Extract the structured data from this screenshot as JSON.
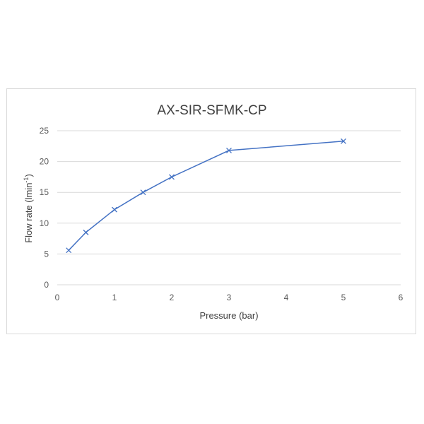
{
  "chart_data": {
    "type": "scatter",
    "title": "AX-SIR-SFMK-CP",
    "xlabel": "Pressure (bar)",
    "ylabel_main": "Flow rate (lmin",
    "ylabel_sup": "-1",
    "ylabel_close": ")",
    "xlim": [
      0,
      6
    ],
    "ylim": [
      0,
      25
    ],
    "xticks": [
      0,
      1,
      2,
      3,
      4,
      5,
      6
    ],
    "yticks": [
      0,
      5,
      10,
      15,
      20,
      25
    ],
    "grid": "horizontal",
    "legend": "none",
    "marker": "x",
    "line_color": "#4472c4",
    "series": [
      {
        "x": [
          0.2,
          0.5,
          1.0,
          1.5,
          2.0,
          3.0,
          5.0
        ],
        "y": [
          5.6,
          8.5,
          12.2,
          15.0,
          17.5,
          21.8,
          23.3
        ]
      }
    ]
  }
}
